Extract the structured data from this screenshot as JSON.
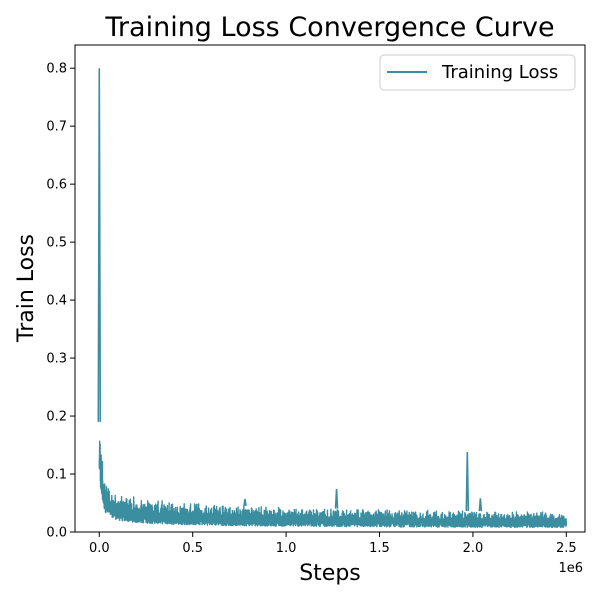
{
  "chart_data": {
    "type": "line",
    "title": "Training Loss Convergence Curve",
    "xlabel": "Steps",
    "ylabel": "Train Loss",
    "x_offset_label": "1e6",
    "xlim": [
      -0.13,
      2.6
    ],
    "ylim": [
      0.0,
      0.84
    ],
    "xticks": [
      0.0,
      0.5,
      1.0,
      1.5,
      2.0,
      2.5
    ],
    "xtick_labels": [
      "0.0",
      "0.5",
      "1.0",
      "1.5",
      "2.0",
      "2.5"
    ],
    "yticks": [
      0.0,
      0.1,
      0.2,
      0.3,
      0.4,
      0.5,
      0.6,
      0.7,
      0.8
    ],
    "ytick_labels": [
      "0.0",
      "0.1",
      "0.2",
      "0.3",
      "0.4",
      "0.5",
      "0.6",
      "0.7",
      "0.8"
    ],
    "legend": {
      "location": "upper right",
      "entries": [
        "Training Loss"
      ]
    },
    "series": [
      {
        "name": "Training Loss",
        "color": "#3a8ea0",
        "x_max": 2.5,
        "envelope_upper": [
          [
            0.0,
            0.19
          ],
          [
            0.01,
            0.15
          ],
          [
            0.03,
            0.09
          ],
          [
            0.05,
            0.075
          ],
          [
            0.1,
            0.065
          ],
          [
            0.2,
            0.06
          ],
          [
            0.4,
            0.052
          ],
          [
            0.7,
            0.046
          ],
          [
            1.0,
            0.042
          ],
          [
            1.5,
            0.039
          ],
          [
            2.0,
            0.036
          ],
          [
            2.5,
            0.034
          ]
        ],
        "envelope_lower": [
          [
            0.0,
            0.1
          ],
          [
            0.01,
            0.06
          ],
          [
            0.03,
            0.035
          ],
          [
            0.05,
            0.028
          ],
          [
            0.1,
            0.02
          ],
          [
            0.2,
            0.016
          ],
          [
            0.4,
            0.013
          ],
          [
            0.7,
            0.011
          ],
          [
            1.0,
            0.01
          ],
          [
            1.5,
            0.009
          ],
          [
            2.0,
            0.008
          ],
          [
            2.5,
            0.008
          ]
        ],
        "spikes": [
          {
            "x": 0.0,
            "y": 0.8
          },
          {
            "x": 0.78,
            "y": 0.057
          },
          {
            "x": 1.27,
            "y": 0.074
          },
          {
            "x": 1.97,
            "y": 0.138
          },
          {
            "x": 2.04,
            "y": 0.058
          }
        ]
      }
    ]
  }
}
